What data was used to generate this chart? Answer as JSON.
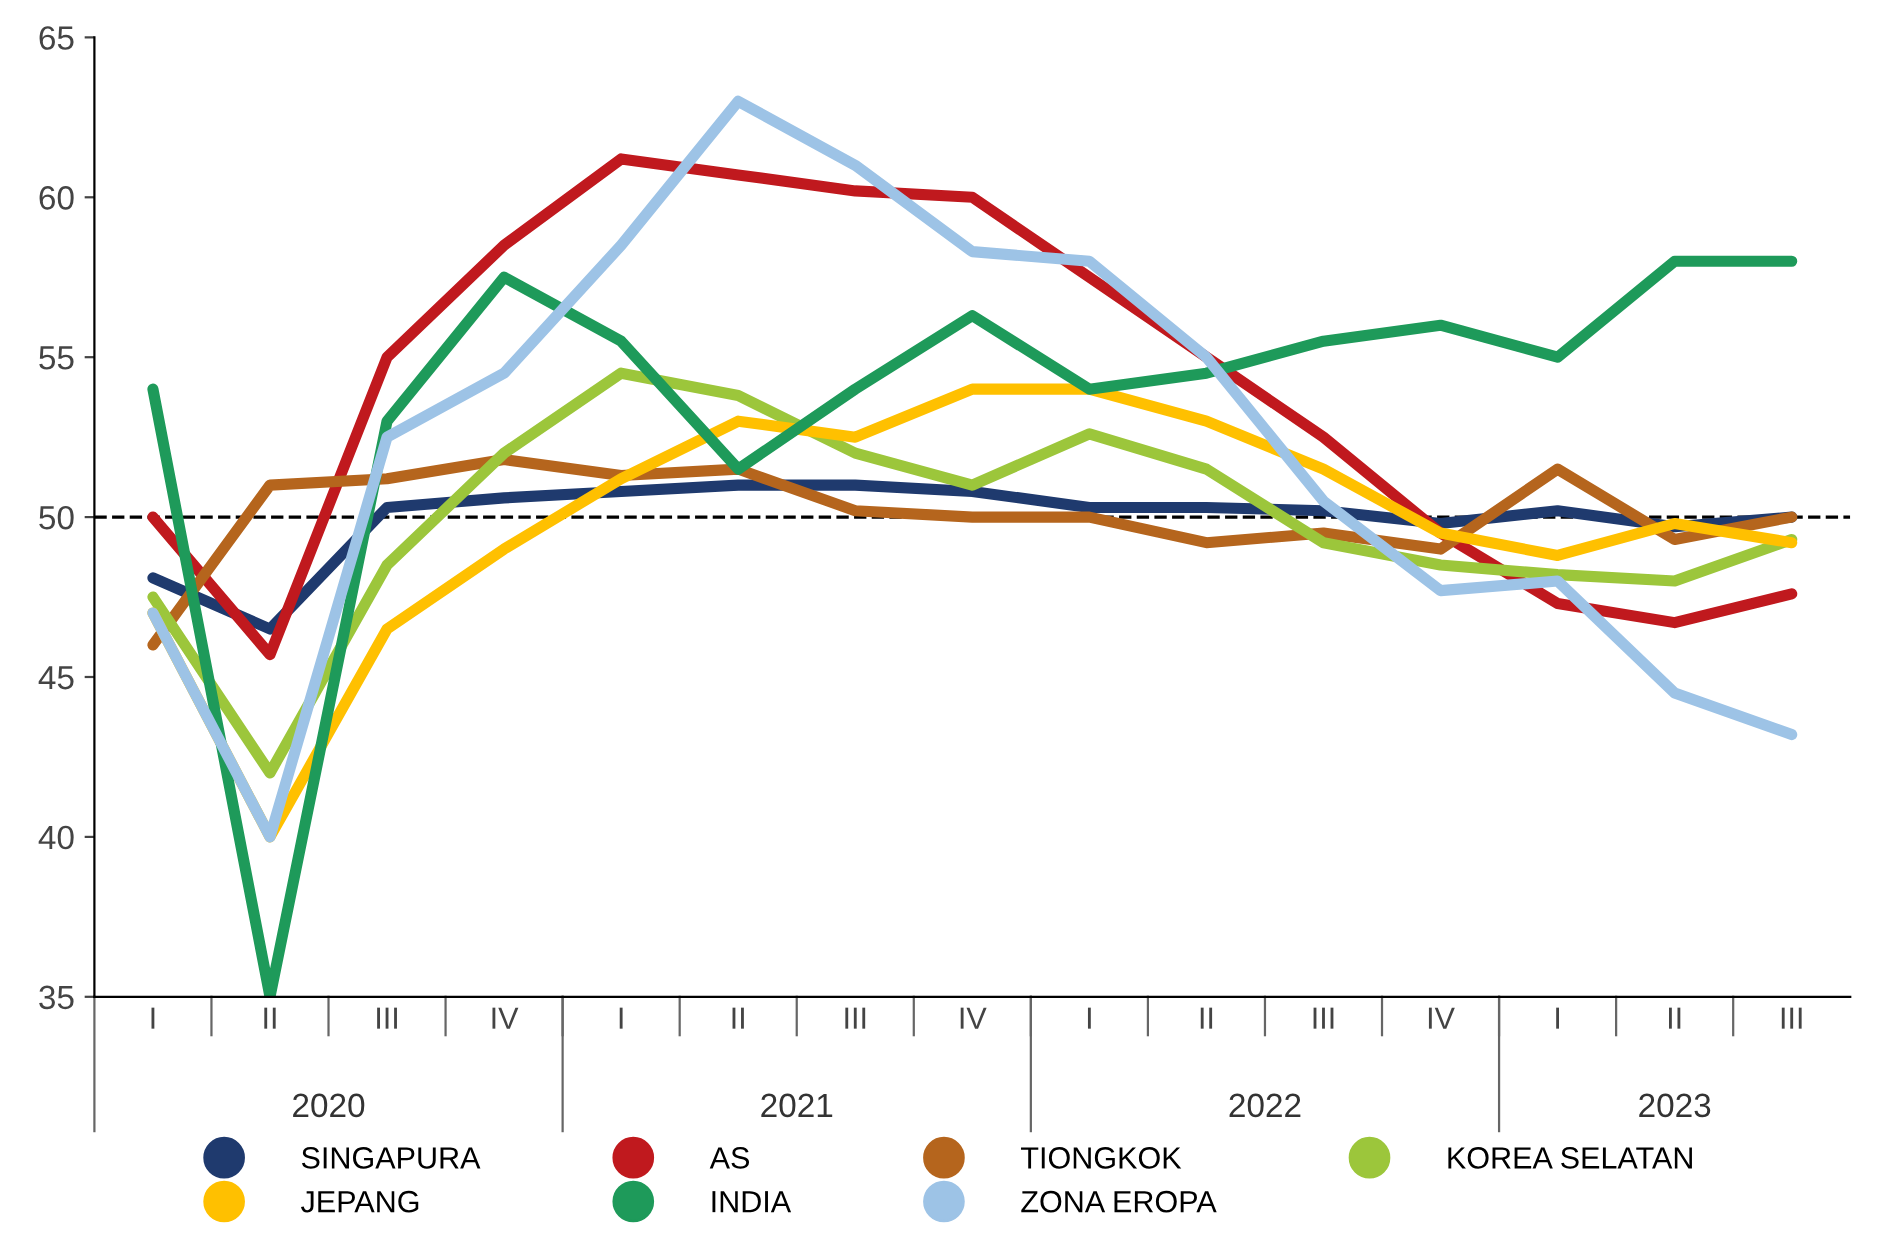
{
  "chart_data": {
    "type": "line",
    "categories": [
      "I",
      "II",
      "III",
      "IV",
      "I",
      "II",
      "III",
      "IV",
      "I",
      "II",
      "III",
      "IV",
      "I",
      "II",
      "III"
    ],
    "annotations": [
      "2020",
      "2021",
      "2022",
      "2023"
    ],
    "ylim": [
      35,
      65
    ],
    "yticks": [
      35,
      40,
      45,
      50,
      55,
      60,
      65
    ],
    "grid": false,
    "legend": "bottom",
    "marker": "none",
    "line_style": "solid",
    "ref_lines": [
      {
        "axis": "y",
        "value": 50,
        "color": "#000000",
        "line_style": "dashed"
      }
    ],
    "series": [
      {
        "name": "SINGAPURA",
        "color": "#1f3a6e",
        "values": [
          48.1,
          46.5,
          50.3,
          50.6,
          50.8,
          51.0,
          51.0,
          50.8,
          50.3,
          50.3,
          50.2,
          49.8,
          50.2,
          49.7,
          50.0
        ]
      },
      {
        "name": "AS",
        "color": "#c0191e",
        "values": [
          50.0,
          45.7,
          55.0,
          58.5,
          61.2,
          60.7,
          60.2,
          60.0,
          57.5,
          55.0,
          52.5,
          49.5,
          47.3,
          46.7,
          47.6
        ]
      },
      {
        "name": "TIONGKOK",
        "color": "#b5651d",
        "values": [
          46.0,
          51.0,
          51.2,
          51.8,
          51.3,
          51.5,
          50.2,
          50.0,
          50.0,
          49.2,
          49.5,
          49.0,
          51.5,
          49.3,
          50.0
        ]
      },
      {
        "name": "KOREA SELATAN",
        "color": "#9cc63b",
        "values": [
          47.5,
          42.0,
          48.5,
          52.0,
          54.5,
          53.8,
          52.0,
          51.0,
          52.6,
          51.5,
          49.2,
          48.5,
          48.2,
          48.0,
          49.3
        ]
      },
      {
        "name": "JEPANG",
        "color": "#ffc000",
        "values": [
          47.0,
          40.0,
          46.5,
          49.0,
          51.2,
          53.0,
          52.5,
          54.0,
          54.0,
          53.0,
          51.5,
          49.5,
          48.8,
          49.8,
          49.2
        ]
      },
      {
        "name": "INDIA",
        "color": "#1e9a5a",
        "values": [
          54.0,
          35.0,
          53.0,
          57.5,
          55.5,
          51.5,
          54.0,
          56.3,
          54.0,
          54.5,
          55.5,
          56.0,
          55.0,
          58.0,
          58.0
        ]
      },
      {
        "name": "ZONA EROPA",
        "color": "#9dc3e6",
        "values": [
          47.0,
          40.0,
          52.5,
          54.5,
          58.5,
          63.0,
          61.0,
          58.3,
          58.0,
          55.0,
          50.5,
          47.7,
          48.0,
          44.5,
          43.2
        ]
      }
    ]
  }
}
